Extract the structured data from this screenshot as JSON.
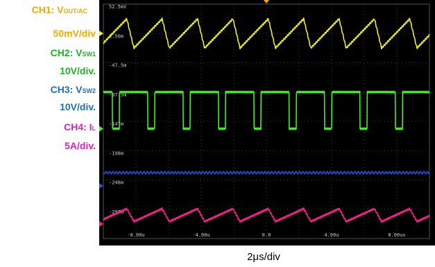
{
  "channels": [
    {
      "id": "ch1",
      "name_prefix": "CH1: V",
      "name_sub": "OUT/AC",
      "scale": "50mV/div",
      "color": "#f5a800"
    },
    {
      "id": "ch2",
      "name_prefix": "CH2: V",
      "name_sub": "SW1",
      "scale": "10V/div.",
      "color": "#1fb02a"
    },
    {
      "id": "ch3",
      "name_prefix": "CH3: V",
      "name_sub": "SW2",
      "scale": "10V/div.",
      "color": "#1e6fb5"
    },
    {
      "id": "ch4",
      "name_prefix": "CH4: I",
      "name_sub": "L",
      "scale": "5A/div.",
      "color": "#e020c0"
    }
  ],
  "time_scale": "2μs/div",
  "chart_data": {
    "type": "line",
    "background": "#000000",
    "grid": true,
    "grid_divisions": {
      "x": 10,
      "y": 8
    },
    "y_tick_labels": [
      "52.5mV",
      "2.50m",
      "-47.5m",
      "-97.5m",
      "-147m",
      "-198m",
      "-248m",
      "-297m"
    ],
    "x_tick_labels": [
      "-8.00u",
      "-4.00u",
      "0.0",
      "4.00u",
      "8.00us"
    ],
    "xlim_us": [
      -10,
      10
    ],
    "series": [
      {
        "channel": "ch1",
        "color": "#f0f020",
        "shape": "triangle",
        "period_us": 2.17,
        "level_div": 1.0,
        "amplitude_div": 0.5
      },
      {
        "channel": "ch2",
        "color": "#44ee22",
        "shape": "square",
        "period_us": 2.17,
        "high_div": 3.0,
        "low_div": 4.25,
        "low_fraction": 0.2
      },
      {
        "channel": "ch3",
        "color": "#2255dd",
        "shape": "flat",
        "level_div": 5.75
      },
      {
        "channel": "ch4",
        "color": "#ff2090",
        "shape": "triangle",
        "period_us": 2.17,
        "level_div": 7.2,
        "amplitude_div": 0.22
      }
    ]
  }
}
